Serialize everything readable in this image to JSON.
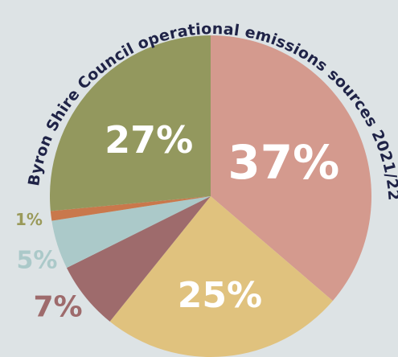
{
  "chart_data": {
    "type": "pie",
    "title": "Byron Shire Council operational emissions sources 2021/22",
    "start_angle_deg": 0,
    "direction": "clockwise",
    "slices": [
      {
        "label": "37%",
        "value": 37,
        "color": "#d49a8e",
        "label_color": "#ffffff"
      },
      {
        "label": "25%",
        "value": 25,
        "color": "#e0c27e",
        "label_color": "#ffffff"
      },
      {
        "label": "7%",
        "value": 7,
        "color": "#9e6b6c",
        "label_color": "#9e6b6c"
      },
      {
        "label": "5%",
        "value": 5,
        "color": "#abc9c9",
        "label_color": "#abc9c9"
      },
      {
        "label": "1%",
        "value": 1,
        "color": "#c9784c",
        "label_color": "#9a9a5a"
      },
      {
        "label": "27%",
        "value": 27,
        "color": "#93985e",
        "label_color": "#ffffff"
      }
    ]
  },
  "colors": {
    "background": "#dde3e5",
    "title": "#1f2347"
  }
}
